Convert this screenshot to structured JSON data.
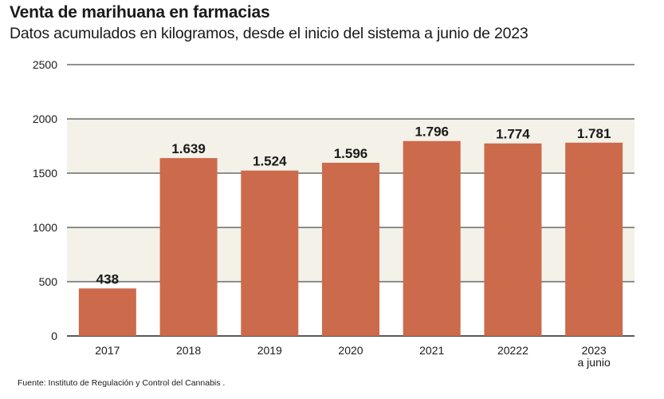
{
  "header": {
    "title": "Venta de marihuana en farmacias",
    "subtitle": "Datos acumulados en kilogramos, desde el inicio del sistema a junio de 2023"
  },
  "footer": {
    "source": "Fuente: Instituto de Regulación y Control del Cannabis ."
  },
  "colors": {
    "bar": "#cc6a4c",
    "band": "#f3f1e8",
    "gridline": "#222222"
  },
  "chart_data": {
    "type": "bar",
    "title": "Venta de marihuana en farmacias",
    "subtitle": "Datos acumulados en kilogramos, desde el inicio del sistema a junio de 2023",
    "xlabel": "",
    "ylabel": "",
    "categories": [
      "2017",
      "2018",
      "2019",
      "2020",
      "2021",
      "20222",
      "2023\na junio"
    ],
    "values": [
      438,
      1639,
      1524,
      1596,
      1796,
      1774,
      1781
    ],
    "value_labels": [
      "438",
      "1.639",
      "1.524",
      "1.596",
      "1.796",
      "1.774",
      "1.781"
    ],
    "ylim": [
      0,
      2500
    ],
    "yticks": [
      0,
      500,
      1000,
      1500,
      2000,
      2500
    ],
    "ytick_labels": [
      "0",
      "500",
      "1000",
      "1500",
      "2000",
      "2500"
    ],
    "grid": true,
    "alternating_bands": true,
    "legend": "none"
  }
}
